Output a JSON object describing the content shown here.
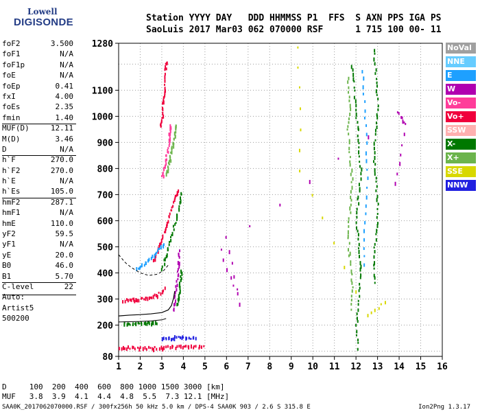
{
  "logo": {
    "line1": "Lowell",
    "line2": "DIGISONDE"
  },
  "header": {
    "line1": "Station YYYY DAY   DDD HHMMSS P1  FFS  S AXN PPS IGA PS",
    "line2": "SaoLuis 2017 Mar03 062 070000 RSF      1 715 100 00- 11"
  },
  "params": [
    {
      "label": "foF2",
      "value": "3.500"
    },
    {
      "label": "foF1",
      "value": "N/A"
    },
    {
      "label": "foF1p",
      "value": "N/A"
    },
    {
      "label": "foE",
      "value": "N/A"
    },
    {
      "label": "foEp",
      "value": "0.41"
    },
    {
      "label": "fxI",
      "value": "4.00"
    },
    {
      "label": "foEs",
      "value": "2.35"
    },
    {
      "label": "fmin",
      "value": "1.40"
    },
    {
      "label": "MUF(D)",
      "value": "12.11"
    },
    {
      "label": "M(D)",
      "value": "3.46"
    },
    {
      "label": "D",
      "value": "N/A"
    },
    {
      "label": "h`F",
      "value": "270.0"
    },
    {
      "label": "h`F2",
      "value": "270.0"
    },
    {
      "label": "h`E",
      "value": "N/A"
    },
    {
      "label": "h`Es",
      "value": "105.0"
    },
    {
      "label": "hmF2",
      "value": "287.1"
    },
    {
      "label": "hmF1",
      "value": "N/A"
    },
    {
      "label": "hmE",
      "value": "110.0"
    },
    {
      "label": "yF2",
      "value": "59.5"
    },
    {
      "label": "yF1",
      "value": "N/A"
    },
    {
      "label": "yE",
      "value": "20.0"
    },
    {
      "label": "B0",
      "value": "46.0"
    },
    {
      "label": "B1",
      "value": "5.70"
    },
    {
      "label": "C-level",
      "value": "22"
    }
  ],
  "autoscaling": {
    "line1": "Auto:",
    "line2": "Artist5",
    "line3": "500200"
  },
  "legend": [
    {
      "label": "NoVal",
      "color": "#a0a0a0"
    },
    {
      "label": "NNE",
      "color": "#66ccff"
    },
    {
      "label": "E",
      "color": "#1ea0ff"
    },
    {
      "label": "W",
      "color": "#b000b0"
    },
    {
      "label": "Vo-",
      "color": "#ff3c9a"
    },
    {
      "label": "Vo+",
      "color": "#f0003c"
    },
    {
      "label": "SSW",
      "color": "#ffb0b0"
    },
    {
      "label": "X-",
      "color": "#007800"
    },
    {
      "label": "X+",
      "color": "#6cb44c"
    },
    {
      "label": "SSE",
      "color": "#d8d800"
    },
    {
      "label": "NNW",
      "color": "#2020e0"
    }
  ],
  "footer": {
    "d_line": "D     100  200  400  600  800 1000 1500 3000 [km]",
    "muf_line": "MUF   3.8  3.9  4.1  4.4  4.8  5.5  7.3 12.1 [MHz]",
    "file_info": "SAA0K_2017062070000.RSF / 300fx256h 50 kHz 5.0 km / DPS-4 SAA0K 903 / 2.6 S 315.8 E",
    "version": "Ion2Png 1.3.17"
  },
  "chart_data": {
    "type": "scatter",
    "x_ticks": [
      1,
      2,
      3,
      4,
      5,
      6,
      7,
      8,
      9,
      10,
      11,
      12,
      13,
      14,
      15,
      16
    ],
    "y_ticks": [
      80,
      200,
      300,
      400,
      500,
      600,
      700,
      800,
      900,
      1000,
      1100,
      1280
    ],
    "xlim": [
      1,
      16
    ],
    "grid_x": [
      2,
      3,
      4,
      5,
      6,
      7,
      8,
      9,
      10,
      11,
      12,
      13,
      14,
      15
    ],
    "grid_y": [
      100,
      200,
      300,
      400,
      500,
      600,
      700,
      800,
      900,
      1000,
      1100,
      1200
    ],
    "traces": [
      {
        "color_key": "Vo+",
        "points": [
          [
            2.9,
            960
          ],
          [
            3.0,
            1000
          ],
          [
            3.05,
            1060
          ],
          [
            3.1,
            1100
          ],
          [
            3.15,
            1180
          ],
          [
            3.2,
            1220
          ]
        ]
      },
      {
        "color_key": "Vo-",
        "points": [
          [
            3.0,
            770
          ],
          [
            3.1,
            800
          ],
          [
            3.2,
            850
          ],
          [
            3.3,
            900
          ],
          [
            3.35,
            940
          ],
          [
            3.4,
            980
          ]
        ]
      },
      {
        "color_key": "X+",
        "points": [
          [
            3.2,
            780
          ],
          [
            3.3,
            820
          ],
          [
            3.4,
            860
          ],
          [
            3.5,
            900
          ],
          [
            3.6,
            940
          ],
          [
            3.65,
            980
          ]
        ]
      },
      {
        "color_key": "Vo+",
        "points": [
          [
            2.6,
            450
          ],
          [
            2.8,
            490
          ],
          [
            3.0,
            540
          ],
          [
            3.2,
            590
          ],
          [
            3.4,
            640
          ],
          [
            3.6,
            690
          ],
          [
            3.75,
            730
          ]
        ]
      },
      {
        "color_key": "X-",
        "points": [
          [
            3.0,
            420
          ],
          [
            3.2,
            480
          ],
          [
            3.4,
            540
          ],
          [
            3.6,
            600
          ],
          [
            3.8,
            660
          ],
          [
            3.9,
            720
          ]
        ]
      },
      {
        "color_key": "E",
        "points": [
          [
            1.8,
            420
          ],
          [
            2.2,
            440
          ],
          [
            2.6,
            470
          ],
          [
            2.9,
            500
          ],
          [
            3.1,
            520
          ]
        ]
      },
      {
        "color_key": "Vo+",
        "points": [
          [
            1.2,
            300
          ],
          [
            1.6,
            300
          ],
          [
            2.0,
            305
          ],
          [
            2.4,
            310
          ],
          [
            2.8,
            320
          ],
          [
            3.2,
            350
          ]
        ]
      },
      {
        "color_key": "W",
        "points": [
          [
            3.5,
            260
          ],
          [
            3.6,
            320
          ],
          [
            3.7,
            380
          ],
          [
            3.75,
            440
          ],
          [
            3.8,
            500
          ]
        ]
      },
      {
        "color_key": "X-",
        "points": [
          [
            3.7,
            280
          ],
          [
            3.8,
            330
          ],
          [
            3.85,
            380
          ],
          [
            3.9,
            420
          ]
        ]
      },
      {
        "color_key": "Vo+",
        "points": [
          [
            1.0,
            120
          ],
          [
            1.5,
            118
          ],
          [
            2.0,
            116
          ],
          [
            2.5,
            115
          ],
          [
            3.0,
            118
          ],
          [
            3.5,
            120
          ],
          [
            4.0,
            125
          ],
          [
            4.5,
            122
          ],
          [
            5.0,
            118
          ]
        ]
      },
      {
        "color_key": "NNW",
        "points": [
          [
            3.0,
            150
          ],
          [
            3.4,
            155
          ],
          [
            3.8,
            160
          ],
          [
            4.2,
            158
          ],
          [
            4.6,
            152
          ]
        ]
      },
      {
        "color_key": "X-",
        "points": [
          [
            1.2,
            210
          ],
          [
            1.6,
            208
          ],
          [
            2.0,
            210
          ],
          [
            2.4,
            212
          ],
          [
            2.8,
            215
          ]
        ]
      },
      {
        "color_key": "X-",
        "points": [
          [
            11.8,
            1200
          ],
          [
            11.9,
            1100
          ],
          [
            12.0,
            1000
          ],
          [
            12.1,
            900
          ],
          [
            12.2,
            800
          ],
          [
            12.1,
            700
          ],
          [
            12.0,
            600
          ],
          [
            12.1,
            500
          ],
          [
            12.2,
            400
          ],
          [
            12.1,
            300
          ],
          [
            12.0,
            200
          ],
          [
            12.1,
            100
          ]
        ]
      },
      {
        "color_key": "X+",
        "points": [
          [
            11.6,
            1150
          ],
          [
            11.7,
            1050
          ],
          [
            11.6,
            950
          ],
          [
            11.7,
            850
          ],
          [
            11.8,
            750
          ],
          [
            11.7,
            650
          ],
          [
            11.6,
            550
          ],
          [
            11.7,
            450
          ],
          [
            11.8,
            350
          ],
          [
            11.7,
            250
          ]
        ]
      },
      {
        "color_key": "X-",
        "points": [
          [
            12.8,
            1260
          ],
          [
            12.9,
            1150
          ],
          [
            13.0,
            1050
          ],
          [
            12.9,
            950
          ],
          [
            12.8,
            850
          ],
          [
            12.9,
            750
          ],
          [
            13.0,
            650
          ],
          [
            12.9,
            550
          ],
          [
            12.8,
            450
          ],
          [
            12.9,
            350
          ]
        ]
      },
      {
        "color_key": "E",
        "points": [
          [
            12.3,
            1180
          ],
          [
            12.4,
            1000
          ],
          [
            12.5,
            800
          ],
          [
            12.4,
            600
          ],
          [
            12.3,
            400
          ]
        ]
      },
      {
        "color_key": "SSE",
        "points": [
          [
            9.3,
            1270
          ],
          [
            9.4,
            800
          ],
          [
            12.5,
            240
          ],
          [
            13.5,
            300
          ]
        ]
      },
      {
        "color_key": "W",
        "points": [
          [
            13.8,
            750
          ],
          [
            14.3,
            970
          ],
          [
            13.9,
            1020
          ],
          [
            5.7,
            490
          ],
          [
            6.6,
            290
          ],
          [
            5.8,
            590
          ]
        ]
      }
    ],
    "profile_curve": [
      [
        1.0,
        235
      ],
      [
        1.5,
        238
      ],
      [
        2.0,
        240
      ],
      [
        2.5,
        243
      ],
      [
        3.0,
        248
      ],
      [
        3.3,
        258
      ],
      [
        3.45,
        275
      ],
      [
        3.55,
        305
      ],
      [
        3.6,
        330
      ]
    ],
    "profile_curve_low": [
      [
        1.0,
        212
      ],
      [
        1.5,
        213
      ],
      [
        2.0,
        214
      ],
      [
        2.5,
        216
      ],
      [
        3.0,
        220
      ],
      [
        3.2,
        225
      ]
    ],
    "dashed_curve": [
      [
        1.0,
        470
      ],
      [
        1.3,
        440
      ],
      [
        1.6,
        420
      ],
      [
        2.0,
        400
      ],
      [
        2.4,
        390
      ],
      [
        2.8,
        395
      ],
      [
        3.1,
        410
      ],
      [
        3.3,
        430
      ]
    ]
  }
}
